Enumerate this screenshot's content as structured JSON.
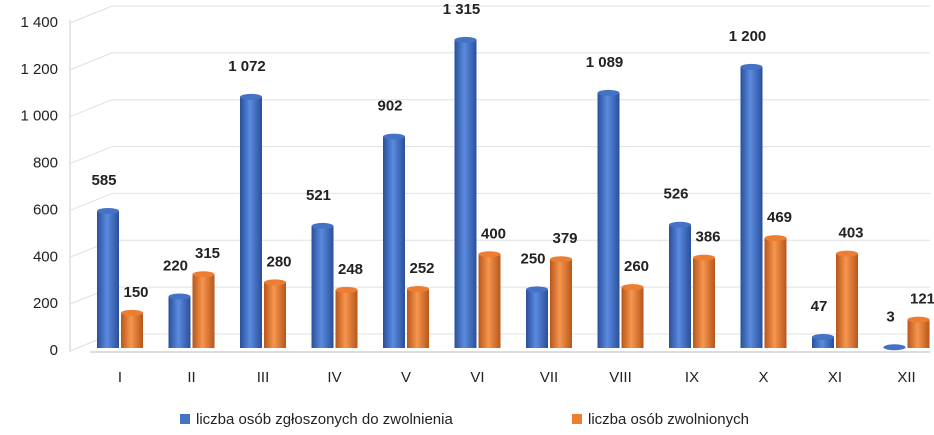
{
  "chart_data": {
    "type": "bar",
    "categories": [
      "I",
      "II",
      "III",
      "IV",
      "V",
      "VI",
      "VII",
      "VIII",
      "IX",
      "X",
      "XI",
      "XII"
    ],
    "series": [
      {
        "name": "liczba osób zgłoszonych do zwolnienia",
        "color": "#4472c4",
        "values": [
          585,
          220,
          1072,
          521,
          902,
          1315,
          250,
          1089,
          526,
          1200,
          47,
          3
        ],
        "value_labels": [
          "585",
          "220",
          "1 072",
          "521",
          "902",
          "1 315",
          "250",
          "1 089",
          "526",
          "1 200",
          "47",
          "3"
        ]
      },
      {
        "name": "liczba osób zwolnionych",
        "color": "#ed7d31",
        "values": [
          150,
          315,
          280,
          248,
          252,
          400,
          379,
          260,
          386,
          469,
          403,
          121
        ]
      }
    ],
    "ylim": [
      0,
      1400
    ],
    "yticks": [
      0,
      200,
      400,
      600,
      800,
      {
        "value": 1000,
        "label": "1 000"
      },
      {
        "value": 1200,
        "label": "1 200"
      },
      {
        "value": 1400,
        "label": "1 400"
      }
    ],
    "grid": true,
    "legend": "bottom"
  }
}
